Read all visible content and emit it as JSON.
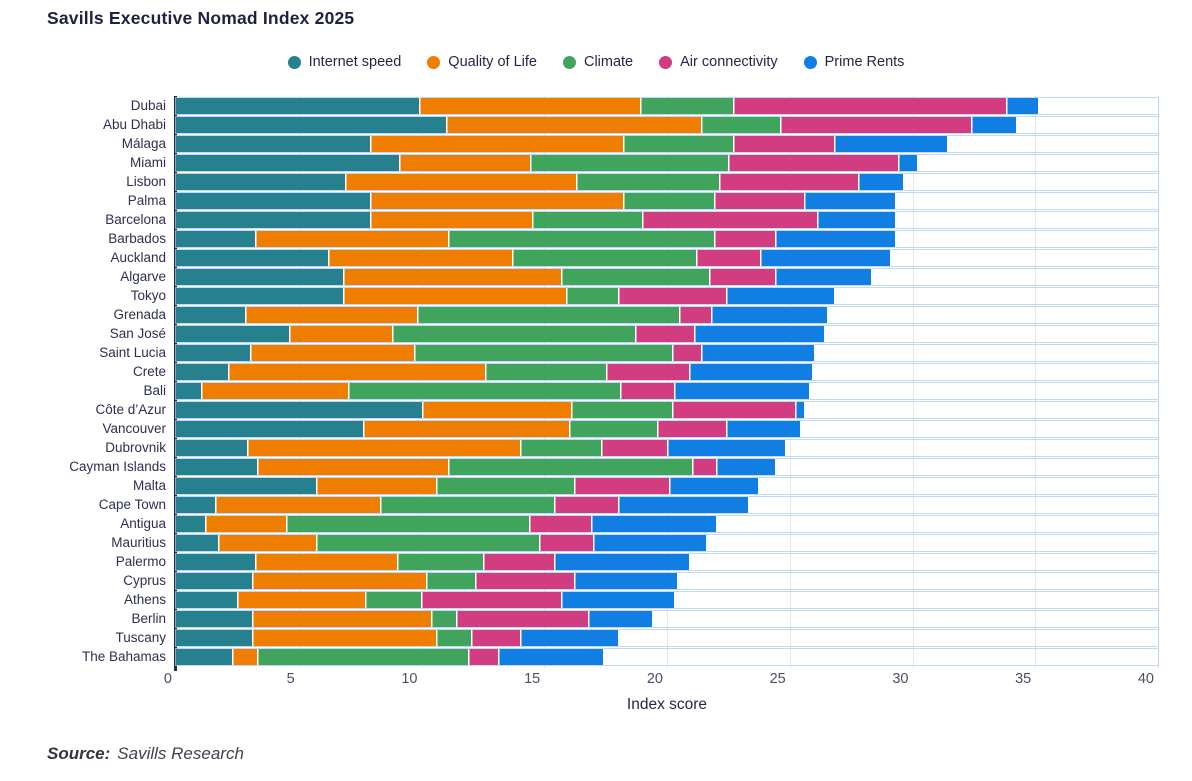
{
  "title": "Savills Executive Nomad Index 2025",
  "source": {
    "prefix": "Source:",
    "text": "Savills Research"
  },
  "chart_data": {
    "type": "bar",
    "orientation": "horizontal",
    "stacked": true,
    "title": "Savills Executive Nomad Index 2025",
    "xlabel": "Index score",
    "xlim": [
      0,
      40
    ],
    "xticks": [
      0,
      5,
      10,
      15,
      20,
      25,
      30,
      35,
      40
    ],
    "grid": true,
    "legend_position": "top",
    "axis_color": "#262a42",
    "gridline_color": "#e7e7ec",
    "categories": [
      "Dubai",
      "Abu Dhabi",
      "Málaga",
      "Miami",
      "Lisbon",
      "Palma",
      "Barcelona",
      "Barbados",
      "Auckland",
      "Algarve",
      "Tokyo",
      "Grenada",
      "San José",
      "Saint Lucia",
      "Crete",
      "Bali",
      "Côte d’Azur",
      "Vancouver",
      "Dubrovnik",
      "Cayman Islands",
      "Malta",
      "Cape Town",
      "Antigua",
      "Mauritius",
      "Palermo",
      "Cyprus",
      "Athens",
      "Berlin",
      "Tuscany",
      "The Bahamas"
    ],
    "series": [
      {
        "name": "Internet speed",
        "color": "#26808e",
        "values": [
          9.9,
          11.0,
          7.9,
          9.1,
          6.9,
          7.9,
          7.9,
          3.2,
          6.2,
          6.8,
          6.8,
          2.8,
          4.6,
          3.0,
          2.1,
          1.0,
          10.0,
          7.6,
          2.9,
          3.3,
          5.7,
          1.6,
          1.2,
          1.7,
          3.2,
          3.1,
          2.5,
          3.1,
          3.1,
          2.3
        ]
      },
      {
        "name": "Quality of Life",
        "color": "#ef7d00",
        "values": [
          9.0,
          10.4,
          10.3,
          5.3,
          9.4,
          10.3,
          6.6,
          7.9,
          7.5,
          8.9,
          9.1,
          7.0,
          4.2,
          6.7,
          10.5,
          6.0,
          6.1,
          8.4,
          11.1,
          7.8,
          4.9,
          6.7,
          3.3,
          4.0,
          5.8,
          7.1,
          5.2,
          7.3,
          7.5,
          1.0
        ]
      },
      {
        "name": "Climate",
        "color": "#41a45c",
        "values": [
          3.8,
          3.2,
          4.5,
          8.1,
          5.8,
          3.7,
          4.5,
          10.8,
          7.5,
          6.0,
          2.1,
          10.7,
          9.9,
          10.5,
          4.9,
          11.1,
          4.1,
          3.6,
          3.3,
          9.9,
          5.6,
          7.1,
          9.9,
          9.1,
          3.5,
          2.0,
          2.3,
          1.0,
          1.4,
          8.6
        ]
      },
      {
        "name": "Air connectivity",
        "color": "#d23c80",
        "values": [
          11.1,
          7.8,
          4.1,
          6.9,
          5.7,
          3.7,
          7.1,
          2.5,
          2.6,
          2.7,
          4.4,
          1.3,
          2.4,
          1.2,
          3.4,
          2.2,
          5.0,
          2.8,
          2.7,
          1.0,
          3.9,
          2.6,
          2.5,
          2.2,
          2.9,
          4.0,
          5.7,
          5.4,
          2.0,
          1.2
        ]
      },
      {
        "name": "Prime Rents",
        "color": "#117ee3",
        "values": [
          1.3,
          1.8,
          4.6,
          0.8,
          1.8,
          3.7,
          3.2,
          4.9,
          5.3,
          3.9,
          4.4,
          4.7,
          5.3,
          4.6,
          5.0,
          5.5,
          0.4,
          3.0,
          4.8,
          2.4,
          3.6,
          5.3,
          5.1,
          4.6,
          5.5,
          4.2,
          4.6,
          2.6,
          4.0,
          4.3
        ]
      }
    ],
    "totals": [
      35.1,
      34.2,
      31.4,
      30.2,
      29.6,
      29.3,
      29.3,
      29.3,
      29.1,
      28.3,
      26.8,
      26.5,
      26.4,
      26.0,
      25.9,
      25.8,
      25.6,
      25.4,
      24.8,
      24.4,
      23.7,
      23.3,
      22.0,
      21.6,
      20.9,
      20.4,
      20.3,
      19.4,
      18.0,
      17.4
    ]
  }
}
